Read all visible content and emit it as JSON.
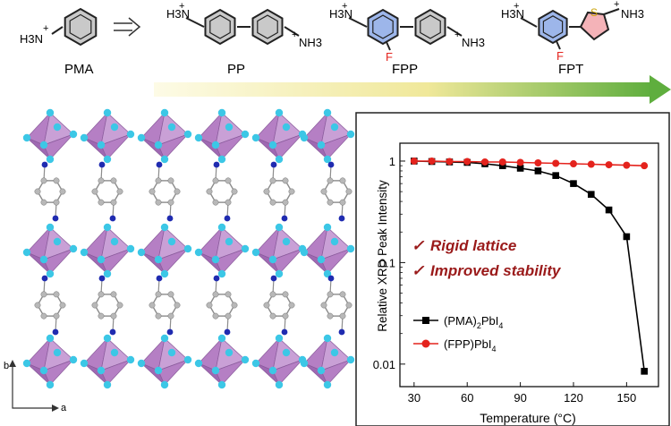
{
  "molecules": [
    {
      "name": "PMA"
    },
    {
      "name": "PP"
    },
    {
      "name": "FPP"
    },
    {
      "name": "FPT"
    }
  ],
  "ammonium_label": "H3N",
  "ammonium_label_right": "NH3",
  "charge_symbol": "+",
  "fluorine_label": "F",
  "heteroatom_label": "S",
  "crystal_axes": {
    "b": "b",
    "a": "a"
  },
  "annotations": [
    "Rigid lattice",
    "Improved stability"
  ],
  "check_symbol": "✓",
  "colors": {
    "arrow_start": "#fdfbe6",
    "arrow_end": "#5fae3e",
    "octahedron": "#b57fc4",
    "iodine": "#3cc7e6",
    "carbon": "#b8b8b8",
    "nitrogen": "#1f2bb0",
    "fluoro_ring": "#9db6ea",
    "thiophene_ring": "#f4b3b8",
    "annotation": "#9a1a1a",
    "pma_series": "#000000",
    "fpp_series": "#e4231d"
  },
  "chart_data": {
    "type": "line",
    "title": "",
    "xlabel": "Temperature (°C)",
    "ylabel": "Relative XRD Peak Intensity",
    "xlim": [
      22,
      168
    ],
    "ylim": [
      0.006,
      1.5
    ],
    "yscale": "log",
    "x_ticks": [
      30,
      60,
      90,
      120,
      150
    ],
    "y_ticks": [
      {
        "value": 0.01,
        "label": "0.01"
      },
      {
        "value": 0.1,
        "label": "0.1"
      },
      {
        "value": 1,
        "label": "1"
      }
    ],
    "legend_position": "bottom-right",
    "series": [
      {
        "name": "(PMA)2PbI4",
        "name_main": "(PMA)",
        "name_sub": "2",
        "name_tail": "PbI",
        "name_sub2": "4",
        "marker": "square",
        "x": [
          30,
          40,
          50,
          60,
          70,
          80,
          90,
          100,
          110,
          120,
          130,
          140,
          150,
          160
        ],
        "y": [
          1.0,
          0.99,
          0.98,
          0.97,
          0.94,
          0.9,
          0.85,
          0.8,
          0.72,
          0.6,
          0.47,
          0.33,
          0.18,
          0.0085
        ]
      },
      {
        "name": "(FPP)PbI4",
        "name_main": "(FPP)PbI",
        "name_sub": "4",
        "name_tail": "",
        "name_sub2": "",
        "marker": "circle",
        "x": [
          30,
          40,
          50,
          60,
          70,
          80,
          90,
          100,
          110,
          120,
          130,
          140,
          150,
          160
        ],
        "y": [
          1.0,
          1.0,
          0.99,
          0.99,
          0.98,
          0.98,
          0.97,
          0.96,
          0.95,
          0.94,
          0.93,
          0.92,
          0.91,
          0.9
        ]
      }
    ]
  }
}
